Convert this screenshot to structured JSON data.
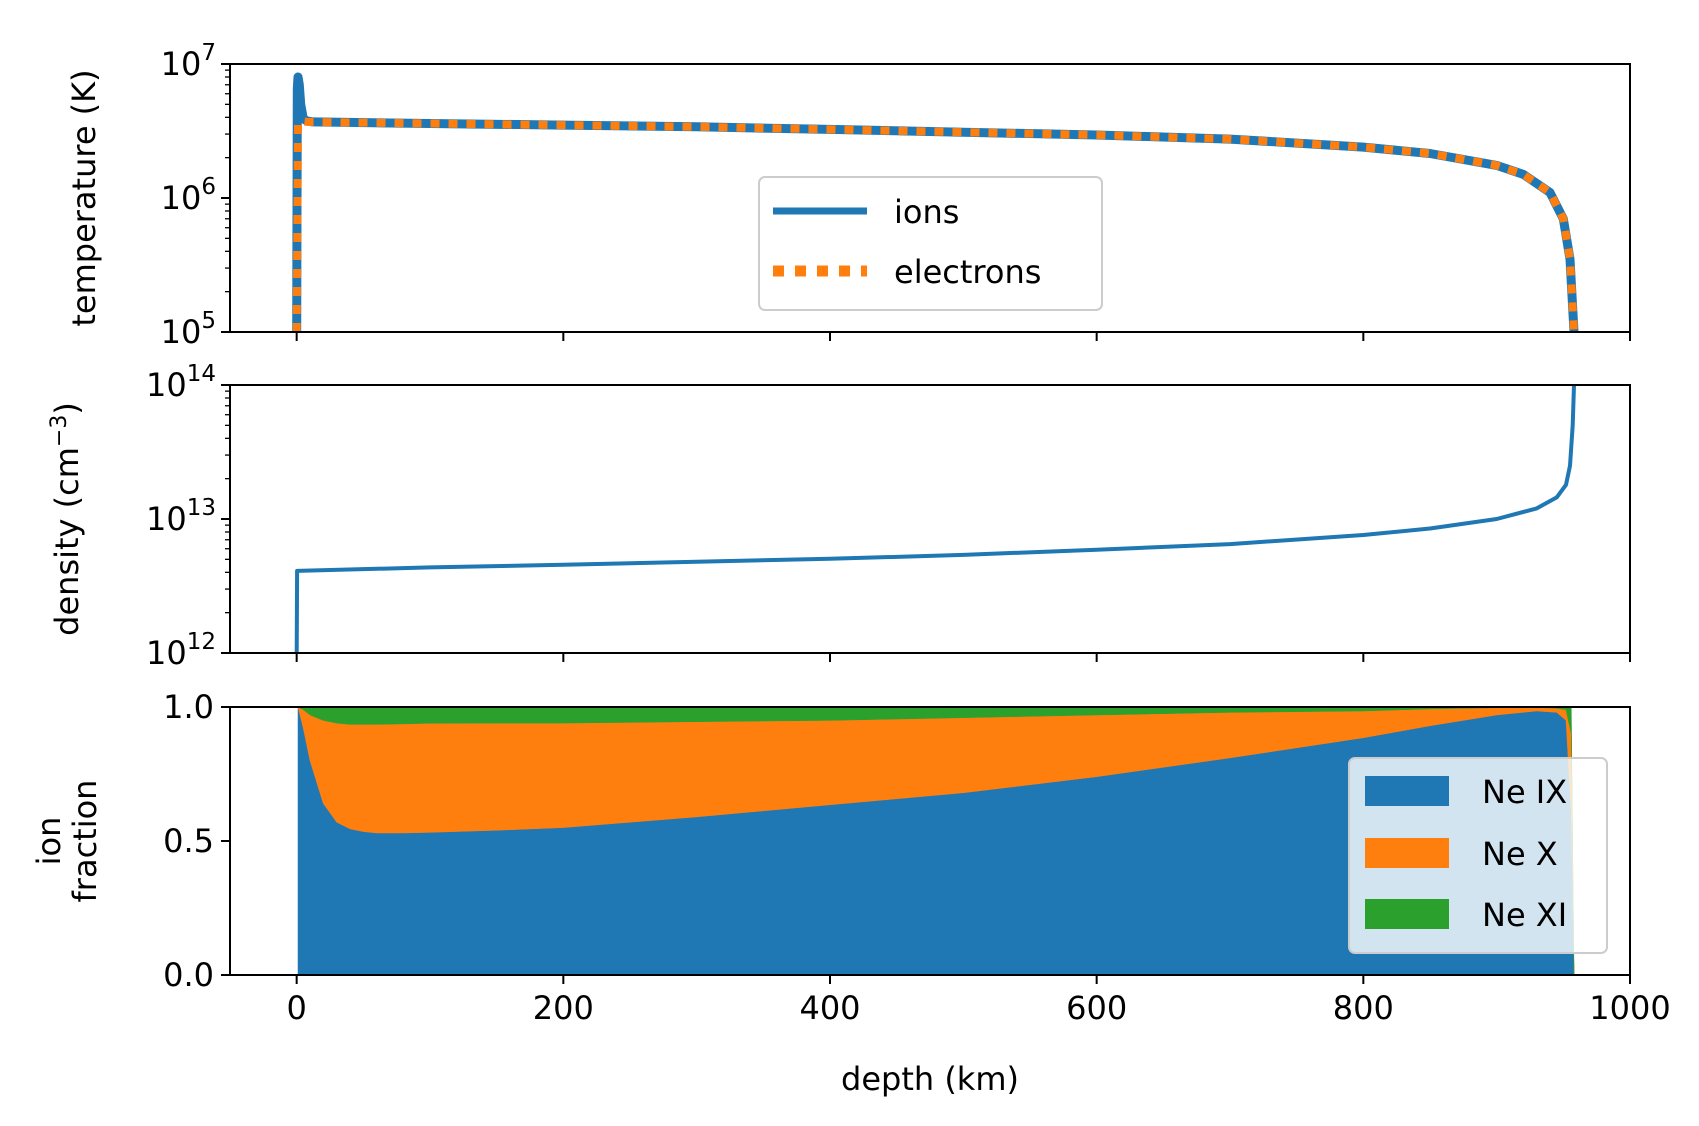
{
  "colors": {
    "ions": "#1f77b4",
    "electrons": "#ff7f0e",
    "ne_ix": "#1f77b4",
    "ne_x": "#ff7f0e",
    "ne_xi": "#2ca02c"
  },
  "chart_data": [
    {
      "type": "line",
      "yscale": "log",
      "ylabel": "temperature (K)",
      "xlim": [
        -50,
        1000
      ],
      "ylim": [
        100000,
        10000000
      ],
      "y_ticks": [
        {
          "value": 100000,
          "base": "10",
          "exp": "5"
        },
        {
          "value": 1000000,
          "base": "10",
          "exp": "6"
        },
        {
          "value": 10000000,
          "base": "10",
          "exp": "7"
        }
      ],
      "legend": {
        "placement": "center",
        "entries": [
          "ions",
          "electrons"
        ]
      },
      "series": [
        {
          "name": "ions",
          "x": [
            0,
            0.5,
            1,
            2,
            3,
            5,
            8,
            12,
            100,
            200,
            300,
            400,
            500,
            600,
            700,
            800,
            850,
            900,
            920,
            940,
            950,
            955,
            958
          ],
          "y": [
            100000,
            6500000,
            8000000,
            7000000,
            5000000,
            3900000,
            3750000,
            3700000,
            3600000,
            3500000,
            3400000,
            3250000,
            3100000,
            2950000,
            2750000,
            2400000,
            2150000,
            1750000,
            1500000,
            1100000,
            700000,
            350000,
            100000
          ]
        },
        {
          "name": "electrons",
          "x": [
            0,
            1,
            3,
            8,
            100,
            200,
            300,
            400,
            500,
            600,
            700,
            800,
            850,
            900,
            920,
            940,
            950,
            955,
            958
          ],
          "y": [
            100000,
            3600000,
            3750000,
            3700000,
            3600000,
            3500000,
            3400000,
            3250000,
            3100000,
            2950000,
            2750000,
            2400000,
            2150000,
            1750000,
            1500000,
            1100000,
            700000,
            350000,
            100000
          ]
        }
      ]
    },
    {
      "type": "line",
      "yscale": "log",
      "ylabel": "density (cm",
      "ylabel_exp": "−3",
      "ylabel_close": ")",
      "xlim": [
        -50,
        1000
      ],
      "ylim": [
        1000000000000,
        100000000000000
      ],
      "y_ticks": [
        {
          "value": 1000000000000,
          "base": "10",
          "exp": "12"
        },
        {
          "value": 10000000000000,
          "base": "10",
          "exp": "13"
        },
        {
          "value": 100000000000000,
          "base": "10",
          "exp": "14"
        }
      ],
      "series": [
        {
          "name": "",
          "x": [
            0,
            0.3,
            100,
            200,
            300,
            400,
            500,
            600,
            700,
            800,
            850,
            900,
            930,
            945,
            952,
            955,
            957,
            958
          ],
          "y": [
            1000000000000,
            4100000000000,
            4350000000000,
            4550000000000,
            4800000000000,
            5050000000000,
            5400000000000,
            5900000000000,
            6500000000000,
            7600000000000,
            8500000000000,
            10000000000000,
            12000000000000,
            14500000000000,
            18000000000000,
            25000000000000,
            50000000000000,
            100000000000000
          ]
        }
      ]
    },
    {
      "type": "area",
      "stacked": true,
      "xlabel": "depth (km)",
      "ylabel_lines": [
        "ion",
        "fraction"
      ],
      "xlim": [
        -50,
        1000
      ],
      "ylim": [
        0,
        1
      ],
      "x_ticks": [
        "0",
        "200",
        "400",
        "600",
        "800",
        "1000"
      ],
      "x_tick_values": [
        0,
        200,
        400,
        600,
        800,
        1000
      ],
      "y_ticks": [
        "0.0",
        "0.5",
        "1.0"
      ],
      "y_tick_values": [
        0,
        0.5,
        1
      ],
      "legend": {
        "placement": "right",
        "entries": [
          "Ne IX",
          "Ne X",
          "Ne XI"
        ]
      },
      "x": [
        1,
        5,
        10,
        20,
        30,
        40,
        50,
        60,
        80,
        100,
        150,
        200,
        300,
        400,
        500,
        600,
        700,
        800,
        850,
        900,
        930,
        945,
        952,
        956,
        958
      ],
      "series": [
        {
          "name": "Ne IX",
          "values": [
            1.0,
            0.92,
            0.8,
            0.64,
            0.57,
            0.545,
            0.535,
            0.53,
            0.53,
            0.532,
            0.54,
            0.55,
            0.59,
            0.635,
            0.68,
            0.74,
            0.81,
            0.885,
            0.93,
            0.97,
            0.985,
            0.98,
            0.95,
            0.6,
            0.0
          ]
        },
        {
          "name": "Ne X",
          "values": [
            0.0,
            0.07,
            0.17,
            0.31,
            0.37,
            0.39,
            0.4,
            0.405,
            0.407,
            0.407,
            0.4,
            0.39,
            0.355,
            0.315,
            0.28,
            0.23,
            0.17,
            0.1,
            0.063,
            0.027,
            0.013,
            0.015,
            0.04,
            0.3,
            0.0
          ]
        },
        {
          "name": "Ne XI",
          "values": [
            0.0,
            0.01,
            0.03,
            0.05,
            0.06,
            0.065,
            0.065,
            0.065,
            0.063,
            0.061,
            0.06,
            0.06,
            0.055,
            0.05,
            0.04,
            0.03,
            0.02,
            0.015,
            0.007,
            0.003,
            0.002,
            0.005,
            0.01,
            0.1,
            0.0
          ]
        }
      ]
    }
  ]
}
